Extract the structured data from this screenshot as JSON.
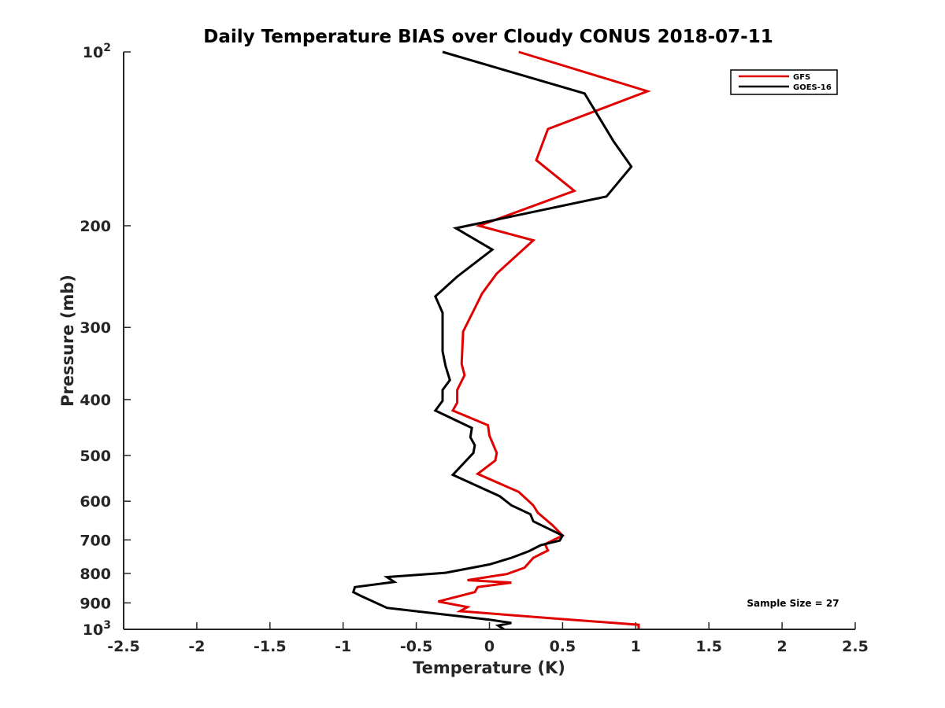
{
  "chart_data": {
    "type": "line",
    "title": "Daily Temperature BIAS over Cloudy CONUS 2018-07-11",
    "xlabel": "Temperature (K)",
    "ylabel": "Pressure (mb)",
    "xlim": [
      -2.5,
      2.5
    ],
    "ylim": [
      1000,
      100
    ],
    "y_scale": "log",
    "y_reversed": true,
    "grid": false,
    "legend_position": "top-right",
    "x_ticks": [
      "-2.5",
      "-2",
      "-1.5",
      "-1",
      "-0.5",
      "0",
      "0.5",
      "1",
      "1.5",
      "2",
      "2.5"
    ],
    "x_tick_values": [
      -2.5,
      -2,
      -1.5,
      -1,
      -0.5,
      0,
      0.5,
      1,
      1.5,
      2,
      2.5
    ],
    "y_ticks": [
      {
        "value": 100,
        "base": "10",
        "exp": "2"
      },
      {
        "value": 200,
        "label": "200"
      },
      {
        "value": 300,
        "label": "300"
      },
      {
        "value": 400,
        "label": "400"
      },
      {
        "value": 500,
        "label": "500"
      },
      {
        "value": 600,
        "label": "600"
      },
      {
        "value": 700,
        "label": "700"
      },
      {
        "value": 800,
        "label": "800"
      },
      {
        "value": 900,
        "label": "900"
      },
      {
        "value": 1000,
        "base": "10",
        "exp": "3"
      }
    ],
    "annotation": "Sample Size = 27",
    "series": [
      {
        "name": "GFS",
        "color": "#e00000",
        "points": [
          [
            0.2,
            100
          ],
          [
            1.08,
            117
          ],
          [
            0.4,
            136
          ],
          [
            0.32,
            154
          ],
          [
            0.58,
            174
          ],
          [
            -0.07,
            200
          ],
          [
            0.3,
            212
          ],
          [
            0.05,
            242
          ],
          [
            -0.05,
            262
          ],
          [
            -0.1,
            278
          ],
          [
            -0.18,
            305
          ],
          [
            -0.19,
            347
          ],
          [
            -0.17,
            363
          ],
          [
            -0.22,
            385
          ],
          [
            -0.22,
            405
          ],
          [
            -0.25,
            418
          ],
          [
            -0.01,
            443
          ],
          [
            0.0,
            462
          ],
          [
            0.05,
            495
          ],
          [
            0.04,
            510
          ],
          [
            -0.08,
            538
          ],
          [
            0.2,
            578
          ],
          [
            0.3,
            610
          ],
          [
            0.33,
            628
          ],
          [
            0.43,
            660
          ],
          [
            0.5,
            688
          ],
          [
            0.38,
            712
          ],
          [
            0.4,
            730
          ],
          [
            0.3,
            752
          ],
          [
            0.24,
            782
          ],
          [
            0.12,
            802
          ],
          [
            -0.15,
            822
          ],
          [
            0.15,
            830
          ],
          [
            -0.08,
            845
          ],
          [
            -0.1,
            862
          ],
          [
            -0.35,
            895
          ],
          [
            -0.15,
            915
          ],
          [
            -0.2,
            930
          ],
          [
            0.5,
            960
          ],
          [
            1.02,
            982
          ],
          [
            1.02,
            1000
          ]
        ]
      },
      {
        "name": "GOES-16",
        "color": "#000000",
        "points": [
          [
            -0.32,
            100
          ],
          [
            0.65,
            118
          ],
          [
            0.85,
            143
          ],
          [
            0.97,
            158
          ],
          [
            0.8,
            178
          ],
          [
            -0.23,
            202
          ],
          [
            0.02,
            220
          ],
          [
            -0.22,
            245
          ],
          [
            -0.37,
            265
          ],
          [
            -0.32,
            283
          ],
          [
            -0.32,
            330
          ],
          [
            -0.3,
            350
          ],
          [
            -0.27,
            370
          ],
          [
            -0.32,
            385
          ],
          [
            -0.32,
            402
          ],
          [
            -0.37,
            418
          ],
          [
            -0.12,
            448
          ],
          [
            -0.13,
            465
          ],
          [
            -0.1,
            480
          ],
          [
            -0.11,
            495
          ],
          [
            -0.25,
            540
          ],
          [
            0.07,
            588
          ],
          [
            0.15,
            610
          ],
          [
            0.28,
            632
          ],
          [
            0.3,
            650
          ],
          [
            0.5,
            688
          ],
          [
            0.48,
            702
          ],
          [
            0.35,
            715
          ],
          [
            0.27,
            732
          ],
          [
            0.15,
            752
          ],
          [
            0.0,
            772
          ],
          [
            -0.3,
            798
          ],
          [
            -0.7,
            812
          ],
          [
            -0.65,
            828
          ],
          [
            -0.92,
            845
          ],
          [
            -0.93,
            862
          ],
          [
            -0.88,
            875
          ],
          [
            -0.7,
            918
          ],
          [
            0.0,
            962
          ],
          [
            0.15,
            975
          ],
          [
            0.06,
            985
          ],
          [
            0.1,
            1000
          ]
        ]
      }
    ]
  }
}
